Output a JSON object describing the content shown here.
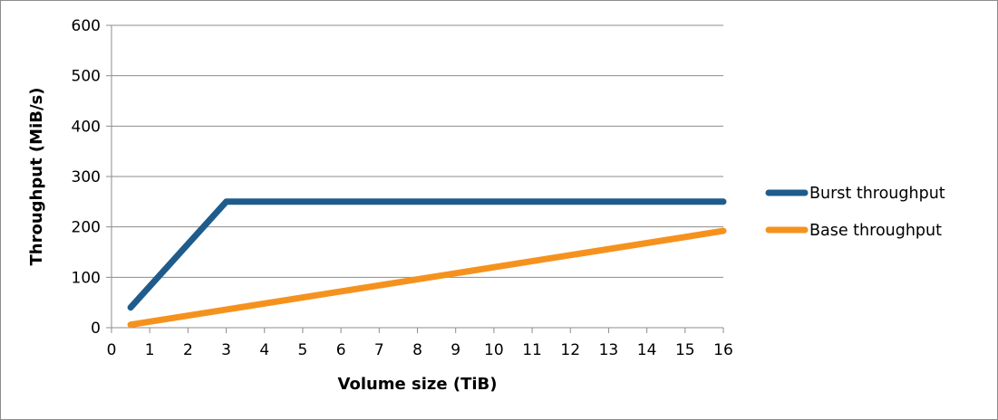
{
  "chart_data": {
    "type": "line",
    "xlabel": "Volume size (TiB)",
    "ylabel": "Throughput (MiB/s)",
    "xlim": [
      0,
      16
    ],
    "ylim": [
      0,
      600
    ],
    "x_ticks": [
      "0",
      "1",
      "2",
      "3",
      "4",
      "5",
      "6",
      "7",
      "8",
      "9",
      "10",
      "11",
      "12",
      "13",
      "14",
      "15",
      "16"
    ],
    "y_ticks": [
      "0",
      "100",
      "200",
      "300",
      "400",
      "500",
      "600"
    ],
    "grid": "horizontal",
    "legend_position": "right",
    "series": [
      {
        "name": "Burst throughput",
        "color": "#1f5c8c",
        "points": [
          [
            0.5,
            40
          ],
          [
            3,
            250
          ],
          [
            16,
            250
          ]
        ]
      },
      {
        "name": "Base throughput",
        "color": "#f5921e",
        "points": [
          [
            0.5,
            6
          ],
          [
            16,
            192
          ]
        ]
      }
    ]
  }
}
